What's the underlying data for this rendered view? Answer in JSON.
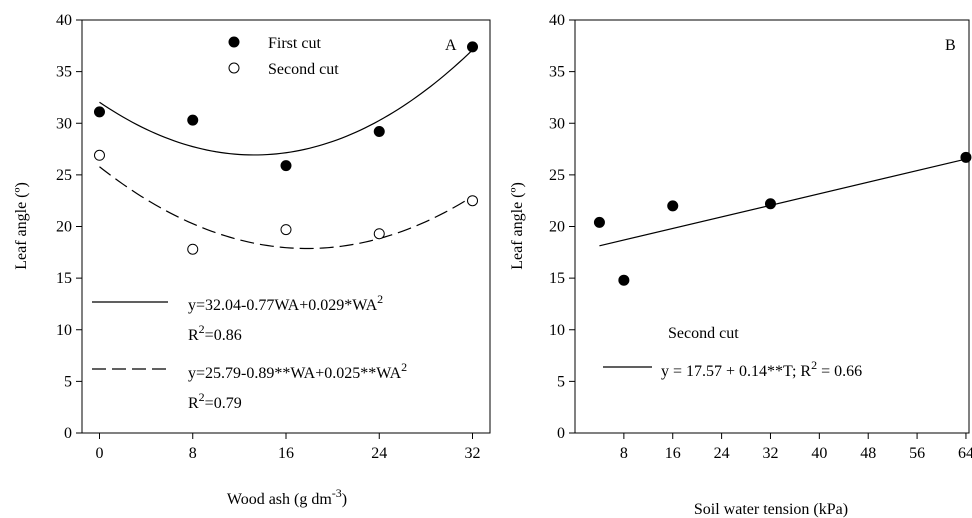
{
  "chart_data": [
    {
      "type": "scatter",
      "panel_letter": "A",
      "title": "",
      "xlabel": "Wood ash (g dm",
      "xlabel_superscript": "-3",
      "xlabel_suffix": ")",
      "ylabel": "Leaf angle (º)",
      "xlim": [
        -1.5,
        33.5
      ],
      "ylim": [
        0,
        40
      ],
      "xticks": [
        0,
        8,
        16,
        24,
        32
      ],
      "yticks": [
        0,
        5,
        10,
        15,
        20,
        25,
        30,
        35,
        40
      ],
      "grid": false,
      "legend_position": "top-center",
      "series": [
        {
          "name": "First cut",
          "marker": "filled-circle",
          "color": "#000000",
          "x": [
            0,
            8,
            16,
            24,
            32
          ],
          "y": [
            31.1,
            30.3,
            25.9,
            29.2,
            37.4
          ],
          "fit": {
            "type": "quadratic",
            "a": 32.04,
            "b": -0.77,
            "c": 0.029,
            "style": "solid"
          }
        },
        {
          "name": "Second cut",
          "marker": "open-circle",
          "color": "#000000",
          "x": [
            0,
            8,
            16,
            24,
            32
          ],
          "y": [
            26.9,
            17.8,
            19.7,
            19.3,
            22.5
          ],
          "fit": {
            "type": "quadratic",
            "a": 25.79,
            "b": -0.89,
            "c": 0.025,
            "style": "dashed"
          }
        }
      ],
      "annotations": [
        {
          "style": "solid",
          "eq_text": "y=32.04-0.77WA+0.029*WA",
          "eq_sup": "2",
          "r_text": "R",
          "r_sup": "2",
          "r_value": "=0.86"
        },
        {
          "style": "dashed",
          "eq_text": "y=25.79-0.89**WA+0.025**WA",
          "eq_sup": "2",
          "r_text": "R",
          "r_sup": "2",
          "r_value": "=0.79"
        }
      ]
    },
    {
      "type": "scatter",
      "panel_letter": "B",
      "title": "",
      "xlabel": "Soil water tension (kPa)",
      "ylabel": "Leaf angle (º)",
      "xlim": [
        0,
        64.5
      ],
      "ylim": [
        0,
        40
      ],
      "xticks": [
        8,
        16,
        24,
        32,
        40,
        48,
        56,
        64
      ],
      "yticks": [
        0,
        5,
        10,
        15,
        20,
        25,
        30,
        35,
        40
      ],
      "grid": false,
      "legend_position": "center-left",
      "series": [
        {
          "name": "Second cut",
          "marker": "filled-circle",
          "color": "#000000",
          "x": [
            4,
            8,
            16,
            32,
            64
          ],
          "y": [
            20.4,
            14.8,
            22.0,
            22.2,
            26.7
          ],
          "fit": {
            "type": "linear",
            "a": 17.57,
            "b": 0.14,
            "x_range": [
              4,
              64
            ],
            "style": "solid"
          }
        }
      ],
      "annotations": [
        {
          "style": "solid",
          "eq_text": "y = 17.57 + 0.14**T; R",
          "eq_sup": "2",
          "eq_suffix": " = 0.66"
        }
      ]
    }
  ]
}
